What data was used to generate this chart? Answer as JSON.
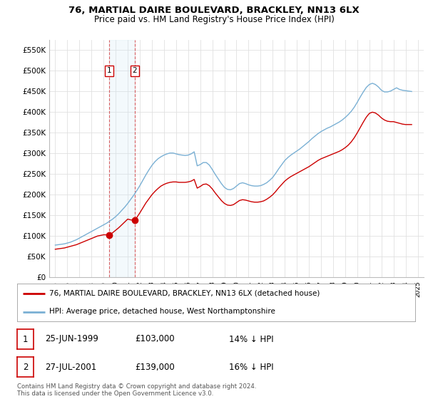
{
  "title": "76, MARTIAL DAIRE BOULEVARD, BRACKLEY, NN13 6LX",
  "subtitle": "Price paid vs. HM Land Registry's House Price Index (HPI)",
  "ylabel_ticks": [
    0,
    50000,
    100000,
    150000,
    200000,
    250000,
    300000,
    350000,
    400000,
    450000,
    500000,
    550000
  ],
  "ylabel_labels": [
    "£0",
    "£50K",
    "£100K",
    "£150K",
    "£200K",
    "£250K",
    "£300K",
    "£350K",
    "£400K",
    "£450K",
    "£500K",
    "£550K"
  ],
  "xlim_start": 1994.5,
  "xlim_end": 2025.5,
  "ylim_min": 0,
  "ylim_max": 575000,
  "background_color": "#ffffff",
  "plot_background": "#ffffff",
  "grid_color": "#e0e0e0",
  "red_line_color": "#cc0000",
  "blue_line_color": "#7ab0d4",
  "span_color": "#d0e8f5",
  "transaction1": {
    "year": 1999.48,
    "price": 103000,
    "label": "1",
    "date": "25-JUN-1999",
    "hpi_diff": "14% ↓ HPI"
  },
  "transaction2": {
    "year": 2001.57,
    "price": 139000,
    "label": "2",
    "date": "27-JUL-2001",
    "hpi_diff": "16% ↓ HPI"
  },
  "legend_line1": "76, MARTIAL DAIRE BOULEVARD, BRACKLEY, NN13 6LX (detached house)",
  "legend_line2": "HPI: Average price, detached house, West Northamptonshire",
  "footer": "Contains HM Land Registry data © Crown copyright and database right 2024.\nThis data is licensed under the Open Government Licence v3.0.",
  "hpi_data_x": [
    1995,
    1995.25,
    1995.5,
    1995.75,
    1996,
    1996.25,
    1996.5,
    1996.75,
    1997,
    1997.25,
    1997.5,
    1997.75,
    1998,
    1998.25,
    1998.5,
    1998.75,
    1999,
    1999.25,
    1999.5,
    1999.75,
    2000,
    2000.25,
    2000.5,
    2000.75,
    2001,
    2001.25,
    2001.5,
    2001.75,
    2002,
    2002.25,
    2002.5,
    2002.75,
    2003,
    2003.25,
    2003.5,
    2003.75,
    2004,
    2004.25,
    2004.5,
    2004.75,
    2005,
    2005.25,
    2005.5,
    2005.75,
    2006,
    2006.25,
    2006.5,
    2006.75,
    2007,
    2007.25,
    2007.5,
    2007.75,
    2008,
    2008.25,
    2008.5,
    2008.75,
    2009,
    2009.25,
    2009.5,
    2009.75,
    2010,
    2010.25,
    2010.5,
    2010.75,
    2011,
    2011.25,
    2011.5,
    2011.75,
    2012,
    2012.25,
    2012.5,
    2012.75,
    2013,
    2013.25,
    2013.5,
    2013.75,
    2014,
    2014.25,
    2014.5,
    2014.75,
    2015,
    2015.25,
    2015.5,
    2015.75,
    2016,
    2016.25,
    2016.5,
    2016.75,
    2017,
    2017.25,
    2017.5,
    2017.75,
    2018,
    2018.25,
    2018.5,
    2018.75,
    2019,
    2019.25,
    2019.5,
    2019.75,
    2020,
    2020.25,
    2020.5,
    2020.75,
    2021,
    2021.25,
    2021.5,
    2021.75,
    2022,
    2022.25,
    2022.5,
    2022.75,
    2023,
    2023.25,
    2023.5,
    2023.75,
    2024,
    2024.25,
    2024.5
  ],
  "hpi_data_y": [
    78000,
    79000,
    80000,
    81000,
    83000,
    85000,
    88000,
    91000,
    95000,
    99000,
    103000,
    107000,
    111000,
    115000,
    119000,
    123000,
    127000,
    131000,
    136000,
    141000,
    147000,
    154000,
    162000,
    170000,
    179000,
    189000,
    199000,
    210000,
    222000,
    235000,
    248000,
    260000,
    271000,
    280000,
    287000,
    292000,
    296000,
    299000,
    301000,
    301000,
    299000,
    297000,
    296000,
    295000,
    296000,
    299000,
    304000,
    270000,
    273000,
    278000,
    278000,
    272000,
    261000,
    249000,
    238000,
    227000,
    218000,
    213000,
    212000,
    215000,
    221000,
    227000,
    229000,
    227000,
    224000,
    222000,
    221000,
    221000,
    222000,
    225000,
    229000,
    235000,
    242000,
    252000,
    263000,
    273000,
    283000,
    290000,
    296000,
    301000,
    306000,
    311000,
    317000,
    323000,
    329000,
    336000,
    342000,
    348000,
    353000,
    357000,
    361000,
    364000,
    368000,
    372000,
    376000,
    381000,
    387000,
    394000,
    402000,
    412000,
    424000,
    437000,
    449000,
    460000,
    467000,
    470000,
    467000,
    461000,
    453000,
    449000,
    449000,
    451000,
    455000,
    459000,
    455000,
    453000,
    452000,
    451000,
    450000
  ],
  "red_data_x": [
    1995,
    1995.25,
    1995.5,
    1995.75,
    1996,
    1996.25,
    1996.5,
    1996.75,
    1997,
    1997.25,
    1997.5,
    1997.75,
    1998,
    1998.25,
    1998.5,
    1998.75,
    1999,
    1999.25,
    1999.5,
    1999.75,
    2000,
    2000.25,
    2000.5,
    2000.75,
    2001,
    2001.25,
    2001.5,
    2001.75,
    2002,
    2002.25,
    2002.5,
    2002.75,
    2003,
    2003.25,
    2003.5,
    2003.75,
    2004,
    2004.25,
    2004.5,
    2004.75,
    2005,
    2005.25,
    2005.5,
    2005.75,
    2006,
    2006.25,
    2006.5,
    2006.75,
    2007,
    2007.25,
    2007.5,
    2007.75,
    2008,
    2008.25,
    2008.5,
    2008.75,
    2009,
    2009.25,
    2009.5,
    2009.75,
    2010,
    2010.25,
    2010.5,
    2010.75,
    2011,
    2011.25,
    2011.5,
    2011.75,
    2012,
    2012.25,
    2012.5,
    2012.75,
    2013,
    2013.25,
    2013.5,
    2013.75,
    2014,
    2014.25,
    2014.5,
    2014.75,
    2015,
    2015.25,
    2015.5,
    2015.75,
    2016,
    2016.25,
    2016.5,
    2016.75,
    2017,
    2017.25,
    2017.5,
    2017.75,
    2018,
    2018.25,
    2018.5,
    2018.75,
    2019,
    2019.25,
    2019.5,
    2019.75,
    2020,
    2020.25,
    2020.5,
    2020.75,
    2021,
    2021.25,
    2021.5,
    2021.75,
    2022,
    2022.25,
    2022.5,
    2022.75,
    2023,
    2023.25,
    2023.5,
    2023.75,
    2024,
    2024.25,
    2024.5
  ],
  "red_data_y": [
    68000,
    69000,
    70000,
    71000,
    73000,
    75000,
    77000,
    79000,
    82000,
    85000,
    88000,
    91000,
    94000,
    97000,
    100000,
    101500,
    103000,
    103000,
    103000,
    108000,
    114000,
    120000,
    127000,
    134000,
    141000,
    139000,
    139000,
    145000,
    156000,
    168000,
    180000,
    190000,
    200000,
    208000,
    215000,
    221000,
    225000,
    228000,
    230000,
    231000,
    231000,
    230000,
    230000,
    230000,
    231000,
    233000,
    237000,
    216000,
    220000,
    225000,
    226000,
    222000,
    214000,
    204000,
    195000,
    186000,
    179000,
    175000,
    174000,
    176000,
    181000,
    186000,
    188000,
    187000,
    185000,
    183000,
    182000,
    182000,
    183000,
    185000,
    189000,
    194000,
    200000,
    208000,
    217000,
    225000,
    233000,
    239000,
    244000,
    248000,
    252000,
    256000,
    260000,
    264000,
    268000,
    273000,
    278000,
    283000,
    287000,
    290000,
    293000,
    296000,
    299000,
    302000,
    305000,
    309000,
    314000,
    320000,
    328000,
    338000,
    350000,
    363000,
    376000,
    388000,
    397000,
    400000,
    398000,
    393000,
    386000,
    381000,
    378000,
    377000,
    377000,
    375000,
    373000,
    371000,
    370000,
    370000,
    370000
  ]
}
